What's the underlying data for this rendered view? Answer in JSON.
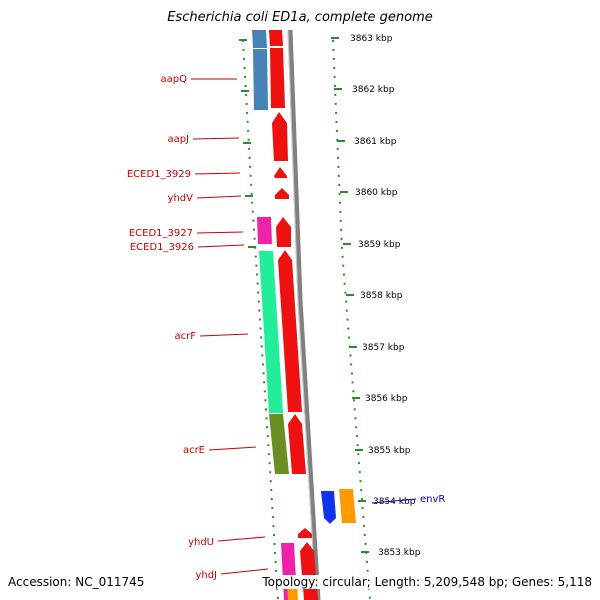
{
  "header": {
    "title": "Escherichia coli ED1a, complete genome"
  },
  "footer": {
    "accession": "Accession: NC_011745",
    "summary": "Topology: circular; Length: 5,209,548 bp; Genes: 5,118"
  },
  "colors": {
    "tick": "#2e8b2e",
    "label": "#cc0000",
    "label_blue": "#0000cc",
    "backbone": "#808080",
    "gene_red": "#ee1111",
    "gene_steelblue": "#4682b4",
    "gene_magenta": "#ee22aa",
    "gene_aqua": "#22ee99",
    "gene_olive": "#6b8e23",
    "gene_blue": "#1133ee",
    "gene_orange": "#ff9900"
  },
  "scale": {
    "unit": "kbp",
    "ticks": [
      3863,
      3862,
      3861,
      3860,
      3859,
      3858,
      3857,
      3856,
      3855,
      3854,
      3853
    ],
    "tick_labels": [
      "3863 kbp",
      "3862 kbp",
      "3861 kbp",
      "3860 kbp",
      "3859 kbp",
      "3858 kbp",
      "3857 kbp",
      "3856 kbp",
      "3855 kbp",
      "3854 kbp",
      "3853 kbp"
    ]
  },
  "gene_labels": [
    {
      "name": "aapQ",
      "side": "left"
    },
    {
      "name": "aapJ",
      "side": "left"
    },
    {
      "name": "ECED1_3929",
      "side": "left"
    },
    {
      "name": "yhdV",
      "side": "left"
    },
    {
      "name": "ECED1_3927",
      "side": "left"
    },
    {
      "name": "ECED1_3926",
      "side": "left"
    },
    {
      "name": "acrF",
      "side": "left"
    },
    {
      "name": "acrE",
      "side": "left"
    },
    {
      "name": "envR",
      "side": "right"
    },
    {
      "name": "yhdU",
      "side": "left"
    },
    {
      "name": "yhdJ",
      "side": "left"
    }
  ]
}
